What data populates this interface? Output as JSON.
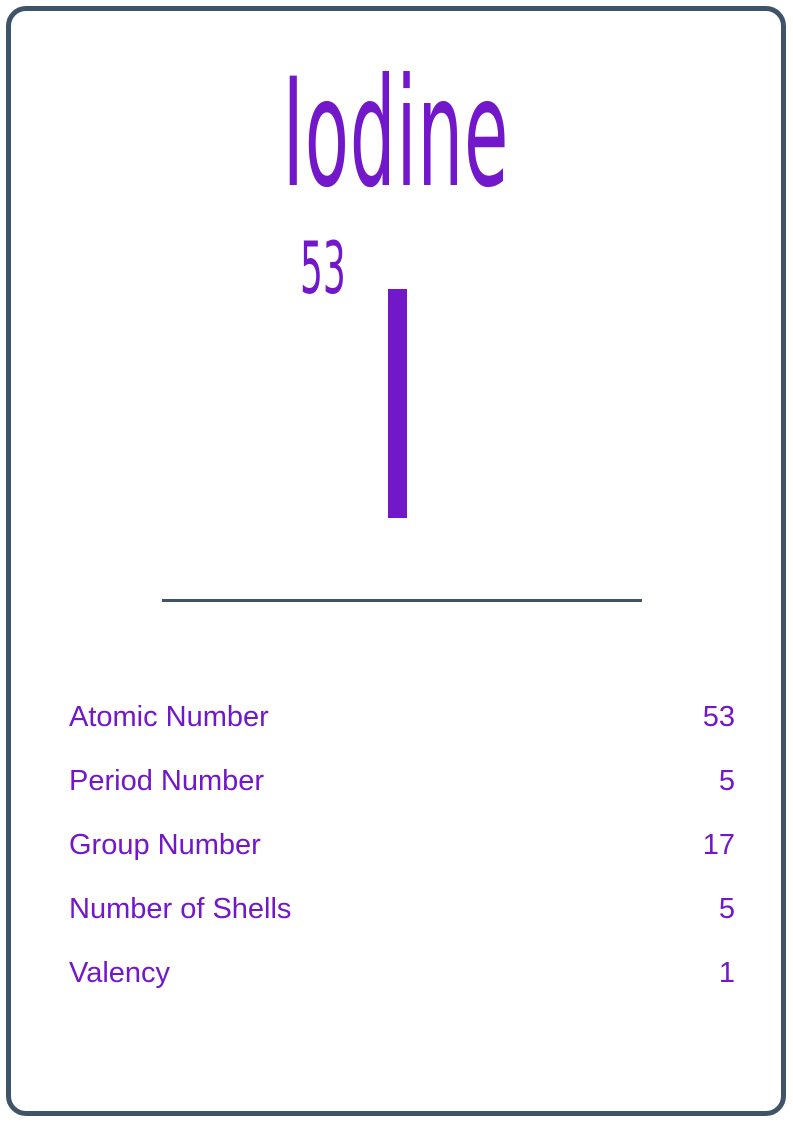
{
  "element": {
    "name": "Iodine",
    "atomic_number": "53",
    "symbol": "I"
  },
  "colors": {
    "accent": "#7217c9",
    "border": "#3f5467",
    "background": "#ffffff"
  },
  "properties": [
    {
      "label": "Atomic Number",
      "value": "53"
    },
    {
      "label": "Period Number",
      "value": "5"
    },
    {
      "label": "Group Number",
      "value": "17"
    },
    {
      "label": "Number of Shells",
      "value": "5"
    },
    {
      "label": "Valency",
      "value": "1"
    }
  ]
}
